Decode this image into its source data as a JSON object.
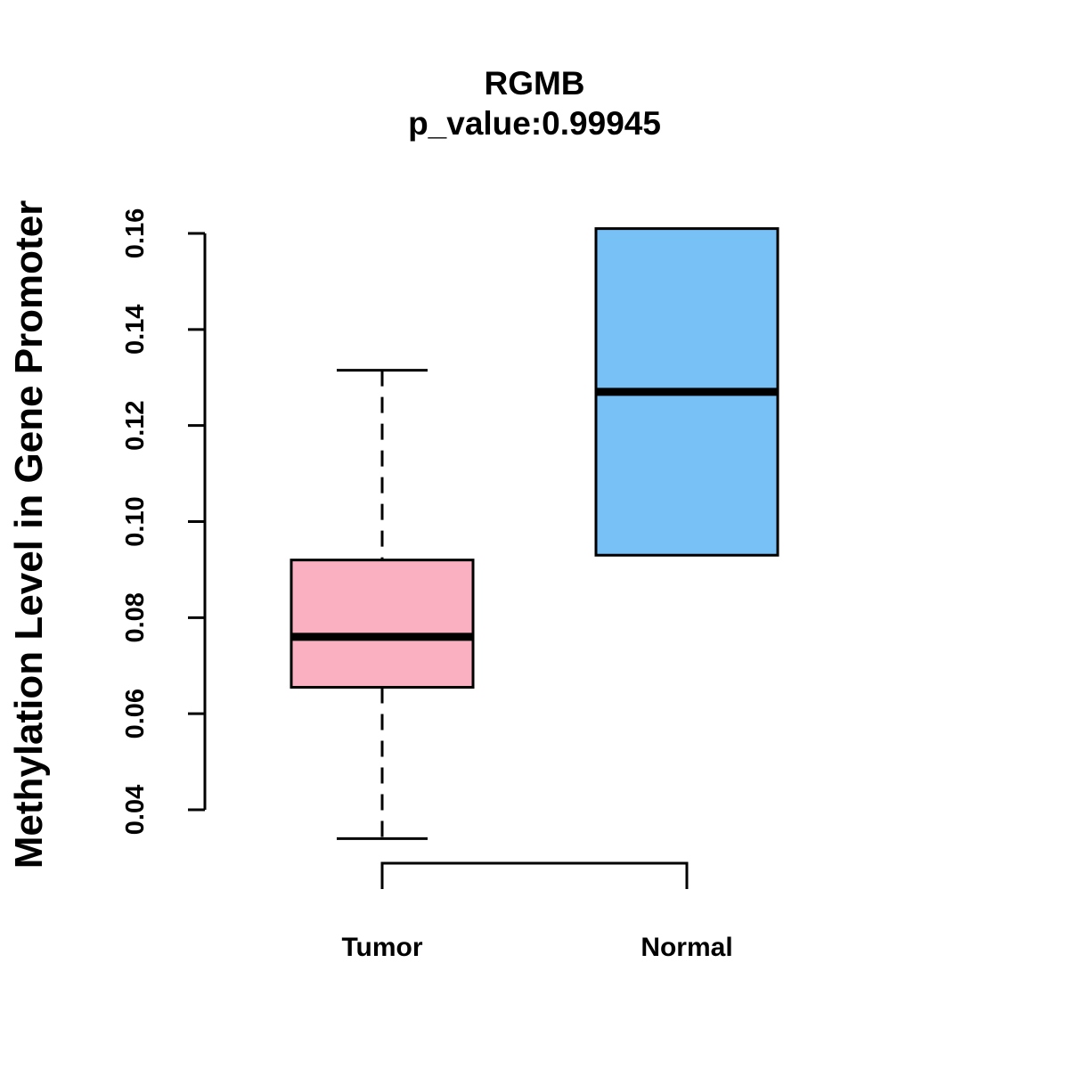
{
  "chart_data": {
    "type": "boxplot",
    "title": "RGMB",
    "subtitle": "p_value:0.99945",
    "xlabel": "",
    "ylabel": "Methylation Level in Gene Promoter",
    "ylim": [
      0.04,
      0.16
    ],
    "yticks": [
      0.04,
      0.06,
      0.08,
      0.1,
      0.12,
      0.14,
      0.16
    ],
    "ytick_labels": [
      "0.04",
      "0.06",
      "0.08",
      "0.10",
      "0.12",
      "0.14",
      "0.16"
    ],
    "grid": false,
    "categories": [
      "Tumor",
      "Normal"
    ],
    "boxes": [
      {
        "name": "Tumor",
        "whisker_low": 0.034,
        "q1": 0.0655,
        "median": 0.076,
        "q3": 0.092,
        "whisker_high": 0.1315,
        "color": "#FBB0C2"
      },
      {
        "name": "Normal",
        "whisker_low": 0.093,
        "q1": 0.093,
        "median": 0.127,
        "q3": 0.161,
        "whisker_high": 0.161,
        "color": "#77C1F7"
      }
    ],
    "comparison_bracket": [
      "Tumor",
      "Normal"
    ]
  }
}
